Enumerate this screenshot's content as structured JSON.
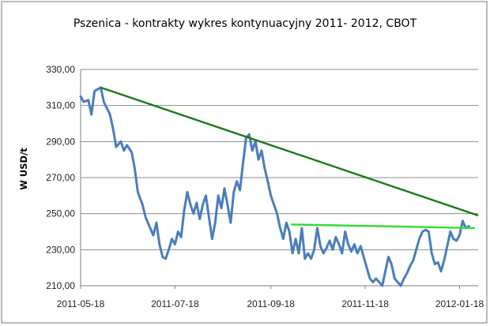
{
  "chart_data": {
    "type": "line",
    "title": "Pszenica - kontrakty wykres kontynuacyjny 2011-  2012, CBOT",
    "xlabel": "",
    "ylabel": "W USD/t",
    "x_tick_labels": [
      "2011-05-18",
      "2011-07-18",
      "2011-09-18",
      "2011-11-18",
      "2012-01-18"
    ],
    "y_tick_labels": [
      "210,00",
      "230,00",
      "250,00",
      "270,00",
      "290,00",
      "310,00",
      "330,00"
    ],
    "ylim": [
      210,
      330
    ],
    "xlim": [
      "2011-05-18",
      "2012-01-30"
    ],
    "grid": "horizontal",
    "legend": "none",
    "series": [
      {
        "color": "#4a7ebb",
        "points": [
          [
            "2011-05-18",
            315
          ],
          [
            "2011-05-20",
            312
          ],
          [
            "2011-05-23",
            313
          ],
          [
            "2011-05-25",
            305
          ],
          [
            "2011-05-27",
            318
          ],
          [
            "2011-05-31",
            320
          ],
          [
            "2011-06-02",
            312
          ],
          [
            "2011-06-06",
            305
          ],
          [
            "2011-06-08",
            297
          ],
          [
            "2011-06-10",
            287
          ],
          [
            "2011-06-13",
            290
          ],
          [
            "2011-06-15",
            285
          ],
          [
            "2011-06-17",
            288
          ],
          [
            "2011-06-20",
            284
          ],
          [
            "2011-06-22",
            275
          ],
          [
            "2011-06-24",
            262
          ],
          [
            "2011-06-27",
            255
          ],
          [
            "2011-06-29",
            248
          ],
          [
            "2011-07-01",
            244
          ],
          [
            "2011-07-04",
            238
          ],
          [
            "2011-07-06",
            245
          ],
          [
            "2011-07-08",
            233
          ],
          [
            "2011-07-10",
            226
          ],
          [
            "2011-07-12",
            225
          ],
          [
            "2011-07-14",
            230
          ],
          [
            "2011-07-16",
            236
          ],
          [
            "2011-07-18",
            233
          ],
          [
            "2011-07-20",
            240
          ],
          [
            "2011-07-22",
            237
          ],
          [
            "2011-07-24",
            252
          ],
          [
            "2011-07-26",
            262
          ],
          [
            "2011-07-28",
            255
          ],
          [
            "2011-07-30",
            250
          ],
          [
            "2011-08-01",
            256
          ],
          [
            "2011-08-03",
            247
          ],
          [
            "2011-08-05",
            255
          ],
          [
            "2011-08-07",
            260
          ],
          [
            "2011-08-09",
            248
          ],
          [
            "2011-08-11",
            236
          ],
          [
            "2011-08-13",
            245
          ],
          [
            "2011-08-15",
            260
          ],
          [
            "2011-08-17",
            253
          ],
          [
            "2011-08-19",
            264
          ],
          [
            "2011-08-21",
            255
          ],
          [
            "2011-08-23",
            245
          ],
          [
            "2011-08-25",
            262
          ],
          [
            "2011-08-27",
            268
          ],
          [
            "2011-08-29",
            263
          ],
          [
            "2011-08-31",
            278
          ],
          [
            "2011-09-02",
            292
          ],
          [
            "2011-09-04",
            294
          ],
          [
            "2011-09-06",
            285
          ],
          [
            "2011-09-08",
            290
          ],
          [
            "2011-09-10",
            280
          ],
          [
            "2011-09-12",
            285
          ],
          [
            "2011-09-14",
            275
          ],
          [
            "2011-09-16",
            268
          ],
          [
            "2011-09-18",
            260
          ],
          [
            "2011-09-20",
            255
          ],
          [
            "2011-09-22",
            250
          ],
          [
            "2011-09-24",
            242
          ],
          [
            "2011-09-26",
            236
          ],
          [
            "2011-09-28",
            245
          ],
          [
            "2011-09-30",
            240
          ],
          [
            "2011-10-02",
            228
          ],
          [
            "2011-10-04",
            236
          ],
          [
            "2011-10-06",
            228
          ],
          [
            "2011-10-08",
            242
          ],
          [
            "2011-10-10",
            225
          ],
          [
            "2011-10-12",
            228
          ],
          [
            "2011-10-14",
            225
          ],
          [
            "2011-10-16",
            230
          ],
          [
            "2011-10-18",
            242
          ],
          [
            "2011-10-20",
            232
          ],
          [
            "2011-10-22",
            228
          ],
          [
            "2011-10-24",
            231
          ],
          [
            "2011-10-26",
            235
          ],
          [
            "2011-10-28",
            230
          ],
          [
            "2011-10-30",
            237
          ],
          [
            "2011-11-01",
            233
          ],
          [
            "2011-11-03",
            228
          ],
          [
            "2011-11-05",
            240
          ],
          [
            "2011-11-07",
            233
          ],
          [
            "2011-11-09",
            229
          ],
          [
            "2011-11-11",
            233
          ],
          [
            "2011-11-13",
            228
          ],
          [
            "2011-11-15",
            232
          ],
          [
            "2011-11-17",
            226
          ],
          [
            "2011-11-19",
            220
          ],
          [
            "2011-11-21",
            214
          ],
          [
            "2011-11-23",
            212
          ],
          [
            "2011-11-25",
            214
          ],
          [
            "2011-11-27",
            212
          ],
          [
            "2011-11-29",
            210
          ],
          [
            "2011-12-01",
            218
          ],
          [
            "2011-12-03",
            226
          ],
          [
            "2011-12-05",
            222
          ],
          [
            "2011-12-07",
            214
          ],
          [
            "2011-12-09",
            212
          ],
          [
            "2011-12-11",
            210
          ],
          [
            "2011-12-13",
            214
          ],
          [
            "2011-12-15",
            217
          ],
          [
            "2011-12-17",
            221
          ],
          [
            "2011-12-19",
            224
          ],
          [
            "2011-12-21",
            230
          ],
          [
            "2011-12-23",
            236
          ],
          [
            "2011-12-25",
            240
          ],
          [
            "2011-12-27",
            241
          ],
          [
            "2011-12-29",
            240
          ],
          [
            "2011-12-31",
            228
          ],
          [
            "2012-01-02",
            222
          ],
          [
            "2012-01-04",
            223
          ],
          [
            "2012-01-06",
            218
          ],
          [
            "2012-01-08",
            224
          ],
          [
            "2012-01-10",
            232
          ],
          [
            "2012-01-12",
            240
          ],
          [
            "2012-01-14",
            236
          ],
          [
            "2012-01-16",
            235
          ],
          [
            "2012-01-18",
            238
          ],
          [
            "2012-01-20",
            246
          ],
          [
            "2012-01-22",
            242
          ],
          [
            "2012-01-24",
            243
          ]
        ]
      }
    ],
    "trendlines": [
      {
        "color": "#1a7a1a",
        "from": [
          "2011-05-31",
          320
        ],
        "to": [
          "2012-01-30",
          249
        ]
      },
      {
        "color": "#33dd33",
        "from": [
          "2011-10-01",
          244
        ],
        "to": [
          "2012-01-28",
          242
        ]
      }
    ]
  }
}
